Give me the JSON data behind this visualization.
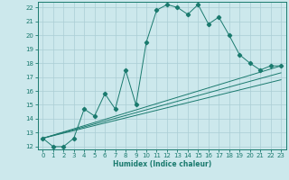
{
  "title": "",
  "xlabel": "Humidex (Indice chaleur)",
  "bg_color": "#cce8ec",
  "grid_color": "#aacdd4",
  "line_color": "#1a7a6e",
  "xlim": [
    -0.5,
    23.5
  ],
  "ylim": [
    11.8,
    22.4
  ],
  "xticks": [
    0,
    1,
    2,
    3,
    4,
    5,
    6,
    7,
    8,
    9,
    10,
    11,
    12,
    13,
    14,
    15,
    16,
    17,
    18,
    19,
    20,
    21,
    22,
    23
  ],
  "yticks": [
    12,
    13,
    14,
    15,
    16,
    17,
    18,
    19,
    20,
    21,
    22
  ],
  "series": [
    [
      0,
      12.6
    ],
    [
      1,
      12.0
    ],
    [
      2,
      12.0
    ],
    [
      3,
      12.6
    ],
    [
      4,
      14.7
    ],
    [
      5,
      14.2
    ],
    [
      6,
      15.8
    ],
    [
      7,
      14.7
    ],
    [
      8,
      17.5
    ],
    [
      9,
      15.0
    ],
    [
      10,
      19.5
    ],
    [
      11,
      21.8
    ],
    [
      12,
      22.2
    ],
    [
      13,
      22.0
    ],
    [
      14,
      21.5
    ],
    [
      15,
      22.2
    ],
    [
      16,
      20.8
    ],
    [
      17,
      21.3
    ],
    [
      18,
      20.0
    ],
    [
      19,
      18.6
    ],
    [
      20,
      18.0
    ],
    [
      21,
      17.5
    ],
    [
      22,
      17.8
    ],
    [
      23,
      17.8
    ]
  ],
  "line2": [
    [
      0,
      12.6
    ],
    [
      23,
      17.8
    ]
  ],
  "line3": [
    [
      0,
      12.6
    ],
    [
      23,
      17.3
    ]
  ],
  "line4": [
    [
      0,
      12.6
    ],
    [
      23,
      16.8
    ]
  ]
}
